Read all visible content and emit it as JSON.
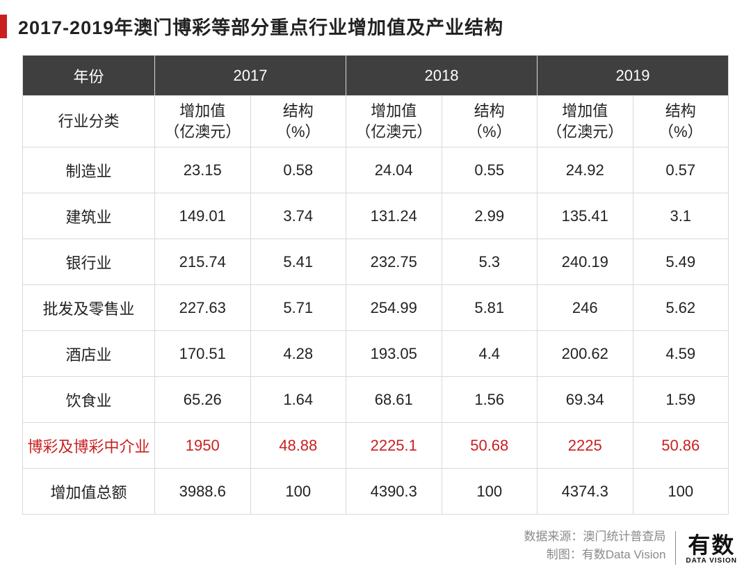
{
  "title": "2017-2019年澳门博彩等部分重点行业增加值及产业结构",
  "colors": {
    "accent": "#c91f1f",
    "header_bg": "#3f3f3f",
    "header_text": "#ffffff",
    "border": "#d9d9d9",
    "text": "#222222",
    "footer_text": "#8a8a8a"
  },
  "table": {
    "type": "table",
    "year_header_label": "年份",
    "years": [
      "2017",
      "2018",
      "2019"
    ],
    "row_header_label": "行业分类",
    "sub_columns": [
      {
        "line1": "增加值",
        "line2": "（亿澳元）"
      },
      {
        "line1": "结构",
        "line2": "（%）"
      }
    ],
    "rows": [
      {
        "label": "制造业",
        "cells": [
          "23.15",
          "0.58",
          "24.04",
          "0.55",
          "24.92",
          "0.57"
        ],
        "highlight": false
      },
      {
        "label": "建筑业",
        "cells": [
          "149.01",
          "3.74",
          "131.24",
          "2.99",
          "135.41",
          "3.1"
        ],
        "highlight": false
      },
      {
        "label": "银行业",
        "cells": [
          "215.74",
          "5.41",
          "232.75",
          "5.3",
          "240.19",
          "5.49"
        ],
        "highlight": false
      },
      {
        "label": "批发及零售业",
        "cells": [
          "227.63",
          "5.71",
          "254.99",
          "5.81",
          "246",
          "5.62"
        ],
        "highlight": false
      },
      {
        "label": "酒店业",
        "cells": [
          "170.51",
          "4.28",
          "193.05",
          "4.4",
          "200.62",
          "4.59"
        ],
        "highlight": false
      },
      {
        "label": "饮食业",
        "cells": [
          "65.26",
          "1.64",
          "68.61",
          "1.56",
          "69.34",
          "1.59"
        ],
        "highlight": false
      },
      {
        "label": "博彩及博彩中介业",
        "cells": [
          "1950",
          "48.88",
          "2225.1",
          "50.68",
          "2225",
          "50.86"
        ],
        "highlight": true
      },
      {
        "label": "增加值总额",
        "cells": [
          "3988.6",
          "100",
          "4390.3",
          "100",
          "4374.3",
          "100"
        ],
        "highlight": false
      }
    ]
  },
  "footer": {
    "source_label": "数据来源：",
    "source_value": "澳门统计普查局",
    "chart_label": "制图：",
    "chart_value": "有数Data Vision",
    "logo_main": "有数",
    "logo_sub": "DATA VISION"
  }
}
